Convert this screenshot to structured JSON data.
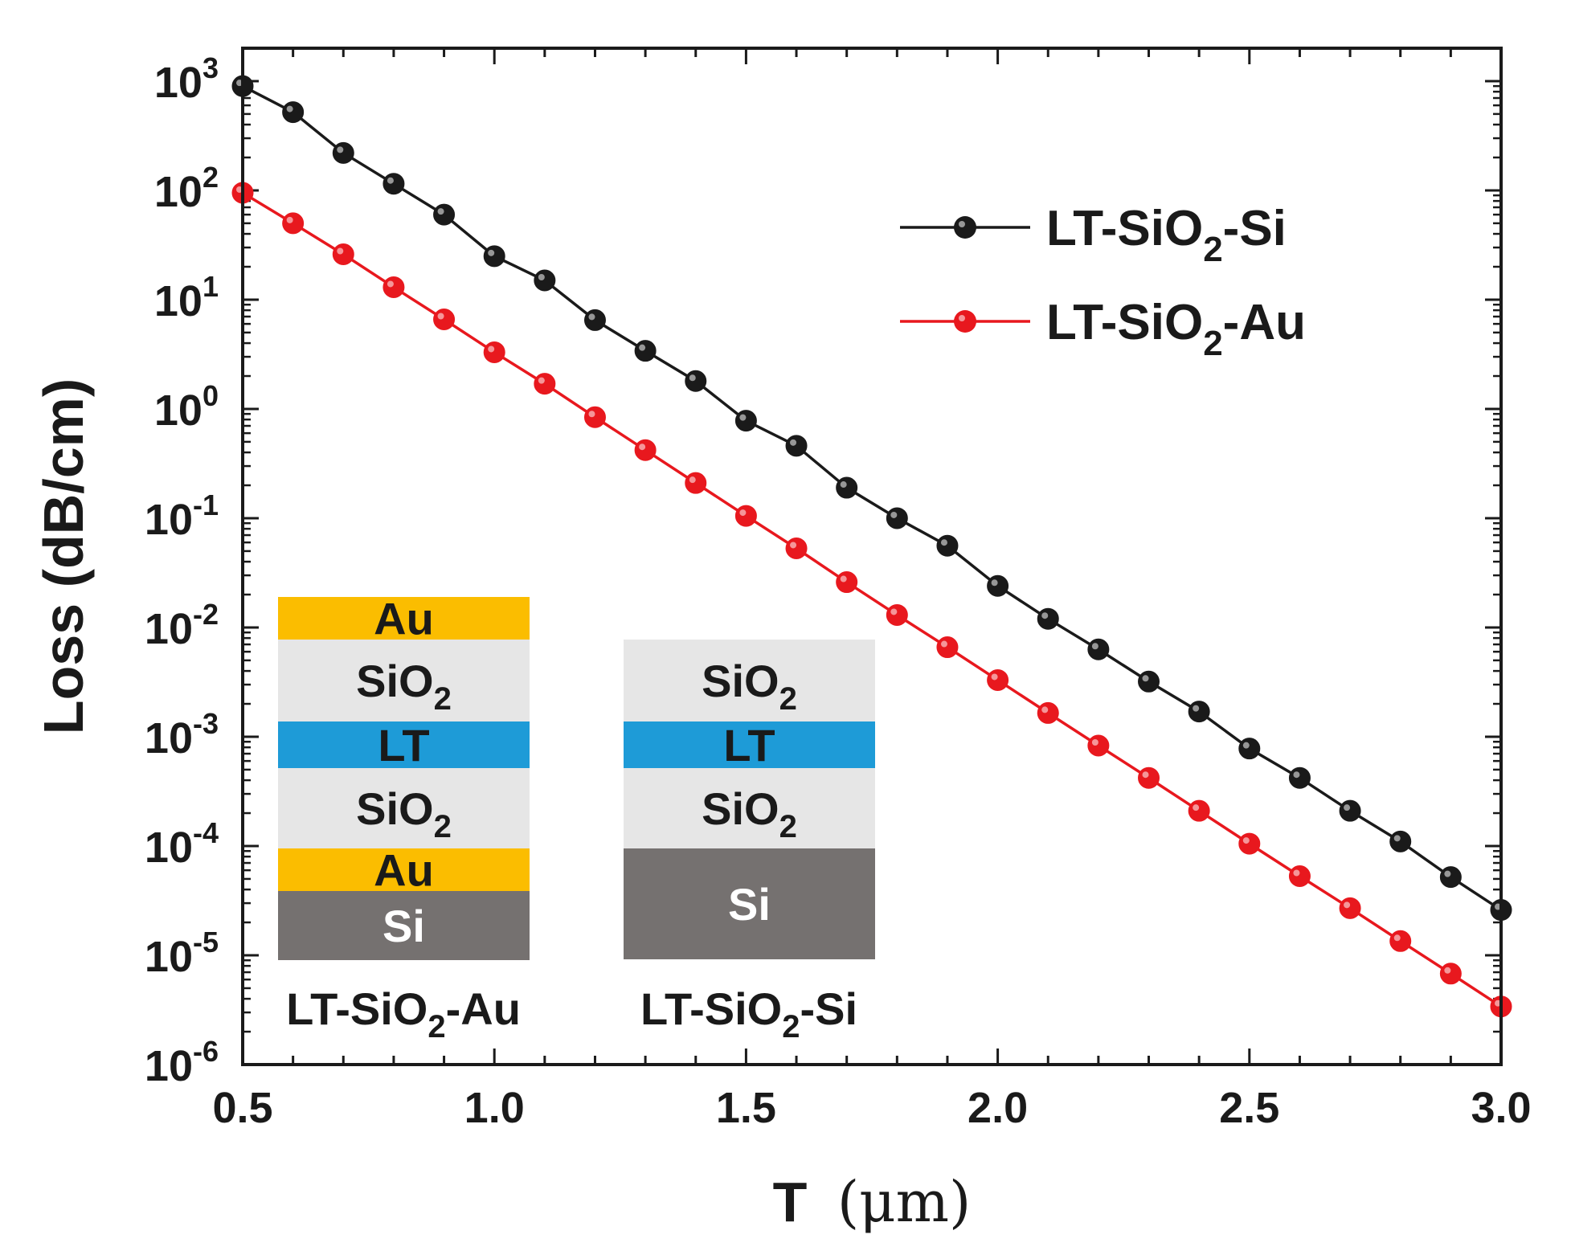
{
  "chart_data": {
    "type": "line",
    "title": "",
    "xlabel": {
      "main": "T",
      "unit": "(μm)"
    },
    "ylabel": "Loss (dB/cm)",
    "xlim": [
      0.5,
      3.0
    ],
    "ylim": [
      1e-06,
      2000
    ],
    "yscale": "log",
    "x_ticks": [
      0.5,
      1.0,
      1.5,
      2.0,
      2.5,
      3.0
    ],
    "x_tick_labels": [
      "0.5",
      "1.0",
      "1.5",
      "2.0",
      "2.5",
      "3.0"
    ],
    "y_tick_exponents": [
      "3",
      "2",
      "1",
      "0",
      "-1",
      "-2",
      "-3",
      "-4",
      "-5",
      "-6"
    ],
    "y_tick_base": "10",
    "legend_position": "top-right",
    "x": [
      0.5,
      0.6,
      0.7,
      0.8,
      0.9,
      1.0,
      1.1,
      1.2,
      1.3,
      1.4,
      1.5,
      1.6,
      1.7,
      1.8,
      1.9,
      2.0,
      2.1,
      2.2,
      2.3,
      2.4,
      2.5,
      2.6,
      2.7,
      2.8,
      2.9,
      3.0
    ],
    "series": [
      {
        "name": {
          "base": "LT-SiO",
          "sub": "2",
          "tail": "-Si"
        },
        "color": "#1a1a1a",
        "values": [
          900,
          520,
          220,
          115,
          60,
          25,
          15,
          6.5,
          3.4,
          1.8,
          0.78,
          0.46,
          0.19,
          0.1,
          0.056,
          0.024,
          0.012,
          0.0063,
          0.0032,
          0.0017,
          0.00078,
          0.00042,
          0.00021,
          0.00011,
          5.2e-05,
          2.6e-05
        ]
      },
      {
        "name": {
          "base": "LT-SiO",
          "sub": "2",
          "tail": "-Au"
        },
        "color": "#e8181e",
        "values": [
          95,
          50,
          26,
          13,
          6.6,
          3.3,
          1.7,
          0.84,
          0.42,
          0.21,
          0.105,
          0.053,
          0.026,
          0.013,
          0.0066,
          0.0033,
          0.00165,
          0.00083,
          0.00042,
          0.00021,
          0.000105,
          5.3e-05,
          2.7e-05,
          1.35e-05,
          6.8e-06,
          3.4e-06
        ]
      }
    ]
  },
  "inset": {
    "stack_au": {
      "caption": {
        "base": "LT-SiO",
        "sub": "2",
        "tail": "-Au"
      },
      "layers": [
        {
          "label": "Au",
          "sub": "",
          "fill": "#fbbd00",
          "text_color": "#1a1a1a"
        },
        {
          "label": "SiO",
          "sub": "2",
          "fill": "#e6e6e6",
          "text_color": "#1a1a1a"
        },
        {
          "label": "LT",
          "sub": "",
          "fill": "#1e9bd7",
          "text_color": "#1a1a1a"
        },
        {
          "label": "SiO",
          "sub": "2",
          "fill": "#e6e6e6",
          "text_color": "#1a1a1a"
        },
        {
          "label": "Au",
          "sub": "",
          "fill": "#fbbd00",
          "text_color": "#1a1a1a"
        },
        {
          "label": "Si",
          "sub": "",
          "fill": "#757170",
          "text_color": "#ffffff"
        }
      ]
    },
    "stack_si": {
      "caption": {
        "base": "LT-SiO",
        "sub": "2",
        "tail": "-Si"
      },
      "layers": [
        {
          "label": "SiO",
          "sub": "2",
          "fill": "#e6e6e6",
          "text_color": "#1a1a1a"
        },
        {
          "label": "LT",
          "sub": "",
          "fill": "#1e9bd7",
          "text_color": "#1a1a1a"
        },
        {
          "label": "SiO",
          "sub": "2",
          "fill": "#e6e6e6",
          "text_color": "#1a1a1a"
        },
        {
          "label": "Si",
          "sub": "",
          "fill": "#757170",
          "text_color": "#ffffff"
        }
      ]
    }
  }
}
